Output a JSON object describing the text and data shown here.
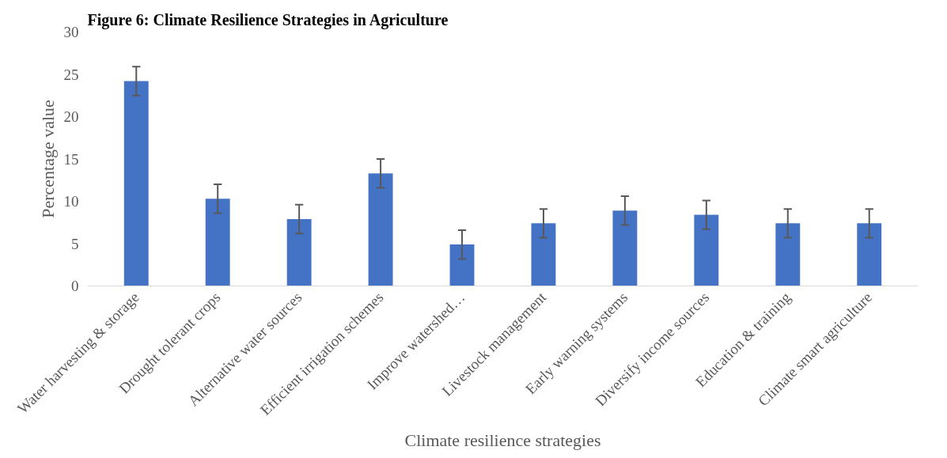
{
  "chart_data": {
    "type": "bar",
    "title": "Figure 6: Climate Resilience Strategies in Agriculture",
    "xlabel": "Climate resilience strategies",
    "ylabel": "Percentage value",
    "categories": [
      "Water harvesting & storage",
      "Drought tolerant crops",
      "Alternative water sources",
      "Efficient irrigation schemes",
      "Improve watershed…",
      "Livestock management",
      "Early warning systems",
      "Diversify income sources",
      "Education & training",
      "Climate smart agriculture"
    ],
    "values": [
      24.2,
      10.3,
      7.9,
      13.3,
      4.9,
      7.4,
      8.9,
      8.4,
      7.4,
      7.4
    ],
    "errors": [
      1.7,
      1.7,
      1.7,
      1.7,
      1.7,
      1.7,
      1.7,
      1.7,
      1.7,
      1.7
    ],
    "color": "#4472c4",
    "ylim": [
      0,
      30
    ],
    "yticks": [
      0,
      5,
      10,
      15,
      20,
      25,
      30
    ],
    "grid": false
  }
}
